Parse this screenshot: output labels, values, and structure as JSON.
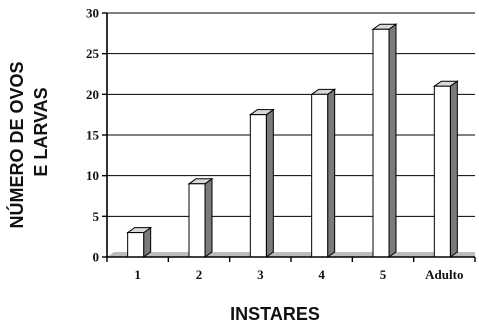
{
  "chart_data": {
    "type": "bar",
    "style": "3d-shaded",
    "categories": [
      "1",
      "2",
      "3",
      "4",
      "5",
      "Adulto"
    ],
    "values": [
      3,
      9,
      17.5,
      20,
      28,
      21
    ],
    "xlabel": "INSTARES",
    "ylabel_lines": [
      "NÚMERO DE OVOS",
      "E LARVAS"
    ],
    "ylim": [
      0,
      30
    ],
    "yticks": [
      0,
      5,
      10,
      15,
      20,
      25,
      30
    ],
    "grid": true,
    "legend": "none",
    "colors": {
      "bar_front": "#ffffff",
      "bar_side": "#7a7a7a",
      "bar_top": "#d8d8d8",
      "axis": "#000000",
      "grid": "#000000"
    }
  }
}
